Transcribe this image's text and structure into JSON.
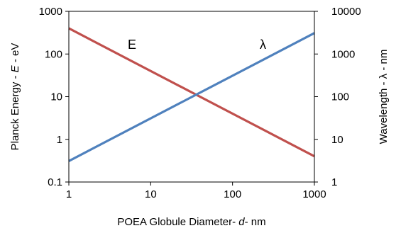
{
  "chart_data": {
    "type": "line",
    "x_scale": "log",
    "y_scale": "log",
    "y2_scale": "log",
    "xlim": [
      1,
      1000
    ],
    "ylim": [
      0.1,
      1000
    ],
    "y2lim": [
      1,
      10000
    ],
    "grid": false,
    "legend": "none",
    "xlabel": {
      "prefix": "POEA Globule Diameter- ",
      "symbol": "d",
      "suffix": "- nm"
    },
    "ylabel": {
      "prefix": "Planck  Energy  -  ",
      "symbol": "E",
      "suffix": " - eV"
    },
    "y2label": "Wavelength  -  λ  -  nm",
    "x_ticks": [
      "1",
      "10",
      "100",
      "1000"
    ],
    "y_ticks": [
      "0.1",
      "1",
      "10",
      "100",
      "1000"
    ],
    "y2_ticks": [
      "1",
      "10",
      "100",
      "1000",
      "10000"
    ],
    "series": [
      {
        "name": "E",
        "axis": "left",
        "color": "#c0504d",
        "x": [
          1,
          1000
        ],
        "y": [
          400,
          0.4
        ]
      },
      {
        "name": "λ",
        "axis": "right",
        "color": "#4f81bd",
        "x": [
          1,
          1000
        ],
        "y": [
          3.1,
          3100
        ]
      }
    ]
  }
}
